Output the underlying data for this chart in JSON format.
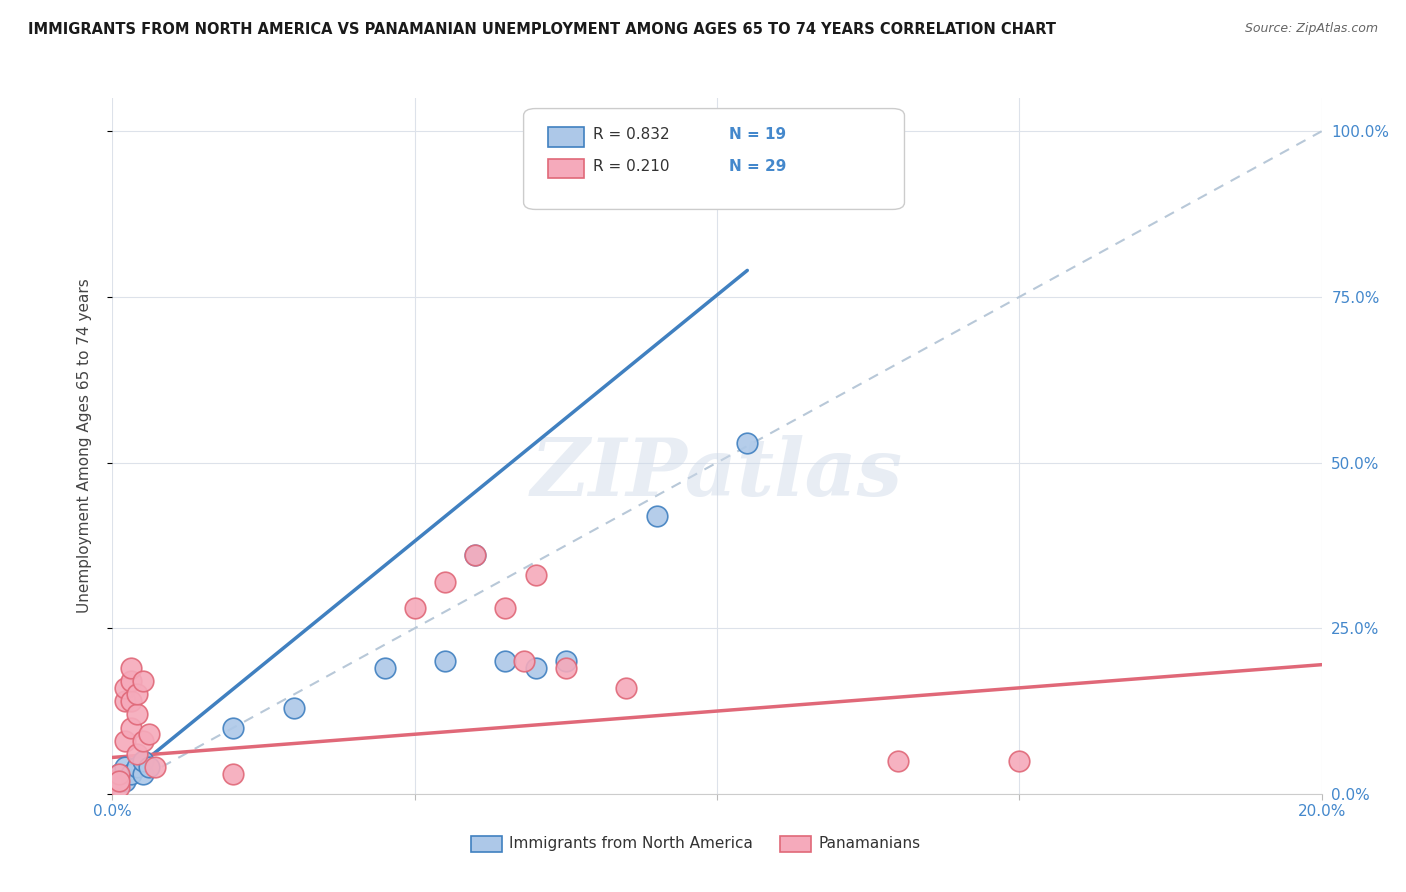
{
  "title": "IMMIGRANTS FROM NORTH AMERICA VS PANAMANIAN UNEMPLOYMENT AMONG AGES 65 TO 74 YEARS CORRELATION CHART",
  "source": "Source: ZipAtlas.com",
  "ylabel": "Unemployment Among Ages 65 to 74 years",
  "legend_label1": "Immigrants from North America",
  "legend_label2": "Panamanians",
  "R1": 0.832,
  "N1": 19,
  "R2": 0.21,
  "N2": 29,
  "color1": "#adc8e8",
  "color2": "#f5aabb",
  "line_color1": "#4080c0",
  "line_color2": "#e06878",
  "xlim": [
    0.0,
    0.2
  ],
  "ylim": [
    0.0,
    1.05
  ],
  "xticks": [
    0.0,
    0.05,
    0.1,
    0.15,
    0.2
  ],
  "xticklabels": [
    "0.0%",
    "",
    "",
    "",
    "20.0%"
  ],
  "yticks_right": [
    0.0,
    0.25,
    0.5,
    0.75,
    1.0
  ],
  "ytick_right_labels": [
    "0.0%",
    "25.0%",
    "50.0%",
    "75.0%",
    "100.0%"
  ],
  "blue_scatter_x": [
    0.001,
    0.001,
    0.002,
    0.002,
    0.003,
    0.004,
    0.005,
    0.005,
    0.006,
    0.02,
    0.03,
    0.045,
    0.055,
    0.06,
    0.065,
    0.07,
    0.075,
    0.09,
    0.105
  ],
  "blue_scatter_y": [
    0.02,
    0.03,
    0.02,
    0.04,
    0.03,
    0.04,
    0.03,
    0.05,
    0.04,
    0.1,
    0.13,
    0.19,
    0.2,
    0.36,
    0.2,
    0.19,
    0.2,
    0.42,
    0.53
  ],
  "pink_scatter_x": [
    0.0,
    0.001,
    0.001,
    0.001,
    0.002,
    0.002,
    0.002,
    0.003,
    0.003,
    0.003,
    0.003,
    0.004,
    0.004,
    0.004,
    0.005,
    0.005,
    0.006,
    0.007,
    0.02,
    0.05,
    0.055,
    0.06,
    0.065,
    0.068,
    0.07,
    0.075,
    0.085,
    0.13,
    0.15
  ],
  "pink_scatter_y": [
    0.02,
    0.01,
    0.03,
    0.02,
    0.08,
    0.14,
    0.16,
    0.1,
    0.14,
    0.17,
    0.19,
    0.12,
    0.15,
    0.06,
    0.08,
    0.17,
    0.09,
    0.04,
    0.03,
    0.28,
    0.32,
    0.36,
    0.28,
    0.2,
    0.33,
    0.19,
    0.16,
    0.05,
    0.05
  ],
  "blue_line_x": [
    0.0,
    0.105
  ],
  "blue_line_y": [
    0.01,
    0.79
  ],
  "pink_line_x": [
    0.0,
    0.2
  ],
  "pink_line_y": [
    0.055,
    0.195
  ],
  "diag_line_x": [
    0.0,
    0.2
  ],
  "diag_line_y": [
    0.0,
    1.0
  ],
  "watermark": "ZIPatlas",
  "background_color": "#ffffff",
  "grid_color": "#dde2ea"
}
